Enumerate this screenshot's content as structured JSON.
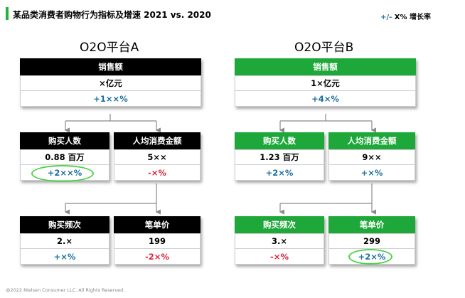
{
  "header": {
    "title": "某品类消费者购物行为指标及增速 2021 vs. 2020",
    "legend_prefix": "+/-",
    "legend_text": "X% 增长率"
  },
  "platforms": [
    {
      "name": "O2O平台A",
      "theme": "black",
      "sales": {
        "label": "销售额",
        "value": "×亿元",
        "growth": "+1××%"
      },
      "buyers": {
        "label": "购买人数",
        "value": "0.88 百万",
        "growth": "+2××%"
      },
      "spend": {
        "label": "人均消费金额",
        "value": "5××",
        "growth": "-×%"
      },
      "freq": {
        "label": "购买频次",
        "value": "2.×",
        "growth": "+×%"
      },
      "price": {
        "label": "笔单价",
        "value": "199",
        "growth": "-2×%"
      }
    },
    {
      "name": "O2O平台B",
      "theme": "green",
      "sales": {
        "label": "销售额",
        "value": "1×亿元",
        "growth": "+4×%"
      },
      "buyers": {
        "label": "购买人数",
        "value": "1.23 百万",
        "growth": "+2×%"
      },
      "spend": {
        "label": "人均消费金额",
        "value": "9××",
        "growth": "+×%"
      },
      "freq": {
        "label": "购买频次",
        "value": "3.×",
        "growth": "-×%"
      },
      "price": {
        "label": "笔单价",
        "value": "299",
        "growth": "+2×%"
      }
    }
  ],
  "footer": "@2022 Nielsen Consumer LLC. All Rights Reserved.",
  "colors": {
    "green": "#1fa83a",
    "blue": "#1a6fa0",
    "red": "#e0203a",
    "highlight": "#4fd24a"
  }
}
